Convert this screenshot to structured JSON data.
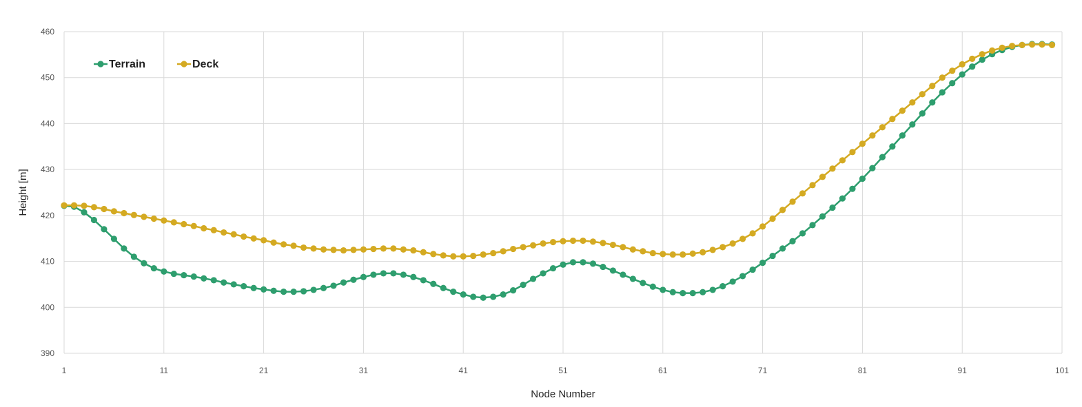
{
  "chart_data": {
    "type": "line",
    "xlabel": "Node Number",
    "ylabel": "Height [m]",
    "x_range": [
      1,
      101
    ],
    "ylim": [
      390,
      460
    ],
    "x_ticks": [
      1,
      11,
      21,
      31,
      41,
      51,
      61,
      71,
      81,
      91,
      101
    ],
    "y_ticks": [
      390,
      400,
      410,
      420,
      430,
      440,
      450,
      460
    ],
    "grid": true,
    "legend_position": "top-left",
    "series": [
      {
        "name": "Terrain",
        "color": "#2e9e6e",
        "values": [
          422.1,
          421.9,
          420.7,
          419.0,
          417.0,
          414.9,
          412.8,
          411.0,
          409.6,
          408.5,
          407.8,
          407.3,
          407.0,
          406.7,
          406.3,
          405.9,
          405.4,
          405.0,
          404.6,
          404.2,
          403.9,
          403.6,
          403.4,
          403.4,
          403.5,
          403.8,
          404.2,
          404.7,
          405.4,
          406.0,
          406.6,
          407.1,
          407.4,
          407.4,
          407.1,
          406.6,
          405.9,
          405.1,
          404.2,
          403.4,
          402.8,
          402.3,
          402.1,
          402.3,
          402.8,
          403.7,
          404.9,
          406.2,
          407.4,
          408.5,
          409.3,
          409.8,
          409.8,
          409.5,
          408.8,
          408.0,
          407.1,
          406.2,
          405.3,
          404.5,
          403.8,
          403.3,
          403.1,
          403.1,
          403.3,
          403.8,
          404.6,
          405.6,
          406.8,
          408.2,
          409.7,
          411.2,
          412.8,
          414.4,
          416.1,
          417.9,
          419.8,
          421.7,
          423.7,
          425.8,
          428.0,
          430.3,
          432.7,
          435.0,
          437.4,
          439.8,
          442.2,
          444.6,
          446.8,
          448.8,
          450.7,
          452.4,
          453.9,
          455.1,
          456.0,
          456.7,
          457.1,
          457.3,
          457.3,
          457.2
        ]
      },
      {
        "name": "Deck",
        "color": "#d4aa22",
        "values": [
          422.2,
          422.2,
          422.1,
          421.8,
          421.4,
          420.9,
          420.5,
          420.1,
          419.7,
          419.3,
          418.9,
          418.5,
          418.1,
          417.7,
          417.2,
          416.8,
          416.3,
          415.9,
          415.4,
          415.0,
          414.6,
          414.1,
          413.7,
          413.4,
          413.0,
          412.8,
          412.6,
          412.5,
          412.4,
          412.5,
          412.6,
          412.7,
          412.8,
          412.8,
          412.6,
          412.4,
          412.0,
          411.6,
          411.3,
          411.1,
          411.1,
          411.2,
          411.5,
          411.8,
          412.2,
          412.7,
          413.1,
          413.5,
          413.9,
          414.2,
          414.4,
          414.5,
          414.5,
          414.3,
          414.0,
          413.6,
          413.1,
          412.6,
          412.2,
          411.8,
          411.6,
          411.5,
          411.5,
          411.7,
          412.0,
          412.5,
          413.1,
          413.9,
          414.9,
          416.1,
          417.6,
          419.3,
          421.2,
          423.0,
          424.8,
          426.6,
          428.4,
          430.2,
          432.0,
          433.8,
          435.6,
          437.4,
          439.2,
          441.0,
          442.8,
          444.6,
          446.4,
          448.2,
          450.0,
          451.5,
          452.9,
          454.1,
          455.1,
          455.9,
          456.5,
          456.9,
          457.1,
          457.2,
          457.2,
          457.1
        ]
      }
    ]
  }
}
